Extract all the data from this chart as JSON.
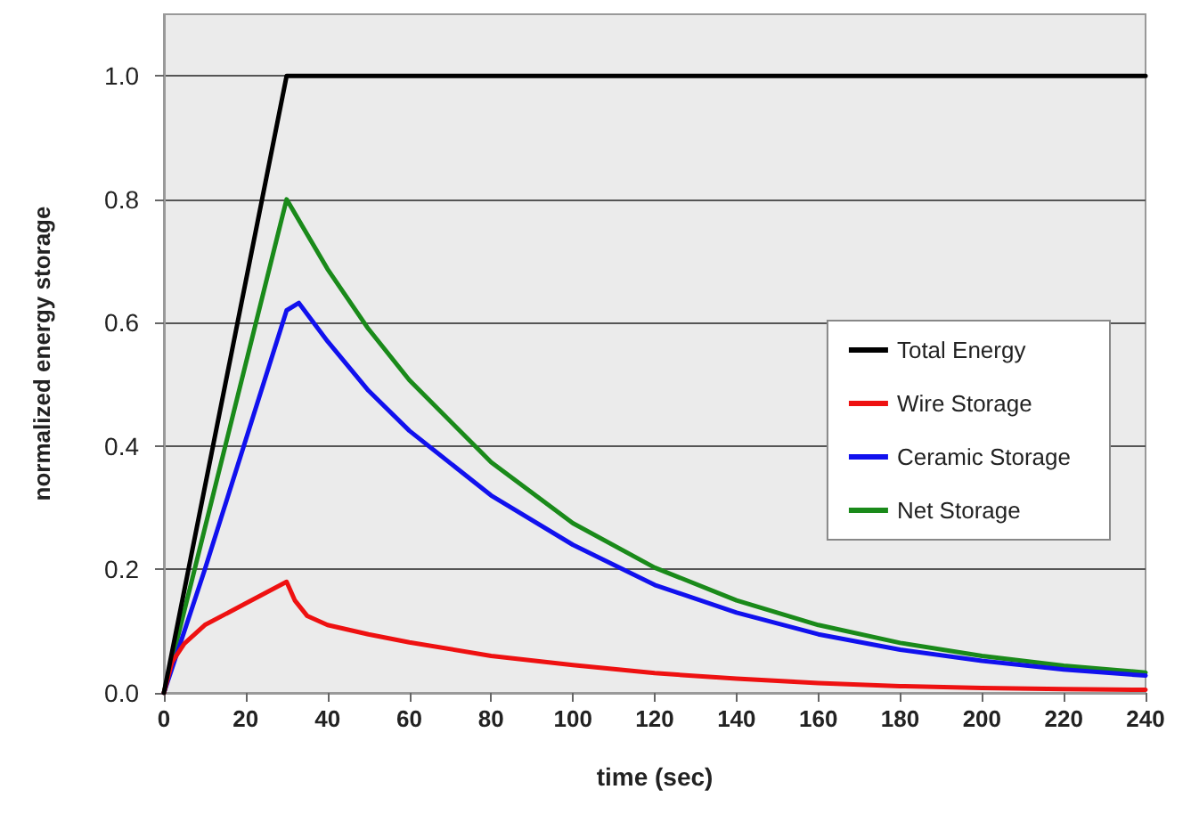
{
  "chart_data": {
    "type": "line",
    "xlabel": "time (sec)",
    "ylabel": "normalized energy storage",
    "xlim": [
      0,
      240
    ],
    "xticks": [
      0,
      20,
      40,
      60,
      80,
      100,
      120,
      140,
      160,
      180,
      200,
      220,
      240
    ],
    "ylim": [
      0,
      1.1
    ],
    "yticks": [
      {
        "value": 0,
        "label": "0.0"
      },
      {
        "value": 0.2,
        "label": "0.2"
      },
      {
        "value": 0.4,
        "label": "0.4"
      },
      {
        "value": 0.6,
        "label": "0.6"
      },
      {
        "value": 0.8,
        "label": "0.8"
      },
      {
        "value": 1,
        "label": "1.0"
      }
    ],
    "grid": "y",
    "legend": "right",
    "marker": "none",
    "line_style": "solid",
    "series": [
      {
        "name": "Total Energy",
        "color": "#000000",
        "x": [
          0,
          30,
          240
        ],
        "values": [
          0,
          1,
          1
        ]
      },
      {
        "name": "Wire Storage",
        "color": "#ee1111",
        "x": [
          0,
          2,
          5,
          10,
          20,
          30,
          32,
          35,
          40,
          50,
          60,
          80,
          100,
          120,
          140,
          160,
          180,
          200,
          220,
          240
        ],
        "values": [
          0,
          0.05,
          0.08,
          0.11,
          0.145,
          0.18,
          0.15,
          0.125,
          0.11,
          0.095,
          0.082,
          0.06,
          0.045,
          0.032,
          0.023,
          0.016,
          0.011,
          0.008,
          0.006,
          0.005
        ]
      },
      {
        "name": "Ceramic Storage",
        "color": "#1111ee",
        "x": [
          0,
          10,
          20,
          30,
          33,
          40,
          50,
          60,
          80,
          100,
          120,
          140,
          160,
          180,
          200,
          220,
          240
        ],
        "values": [
          0,
          0.2,
          0.41,
          0.62,
          0.632,
          0.57,
          0.49,
          0.425,
          0.32,
          0.24,
          0.175,
          0.13,
          0.095,
          0.07,
          0.052,
          0.038,
          0.028
        ]
      },
      {
        "name": "Net Storage",
        "color": "#1a8a1a",
        "x": [
          0,
          30,
          40,
          50,
          60,
          80,
          100,
          120,
          140,
          160,
          180,
          200,
          220,
          240
        ],
        "values": [
          0,
          0.8,
          0.687,
          0.59,
          0.507,
          0.374,
          0.275,
          0.203,
          0.15,
          0.11,
          0.081,
          0.06,
          0.044,
          0.033
        ]
      }
    ]
  }
}
